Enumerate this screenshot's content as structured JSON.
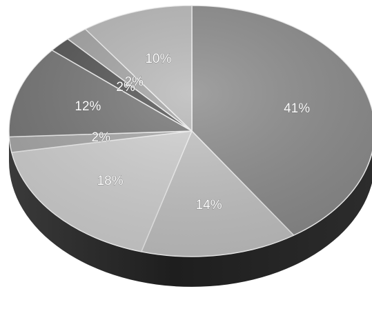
{
  "chart_data": {
    "type": "pie",
    "style": "3d-grayscale",
    "values": [
      41,
      14,
      18,
      2,
      12,
      2,
      2,
      10
    ],
    "labels": [
      "41%",
      "14%",
      "18%",
      "2%",
      "12%",
      "2%",
      "2%",
      "10%"
    ],
    "colors": [
      "#8c8c8c",
      "#c4c4c4",
      "#d2d2d2",
      "#a8a8a8",
      "#777777",
      "#555555",
      "#a4a4a4",
      "#b9b9b9"
    ]
  }
}
